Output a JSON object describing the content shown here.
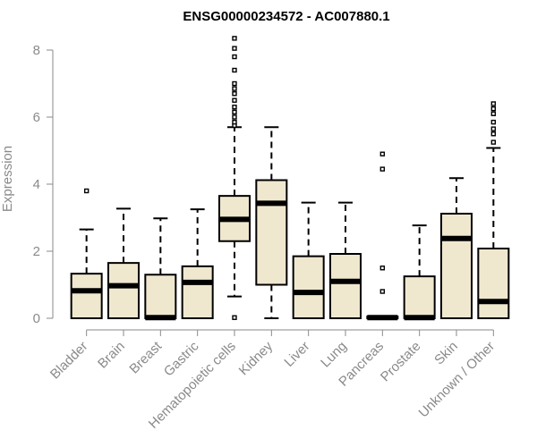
{
  "chart_data": {
    "type": "box",
    "title": "ENSG00000234572 - AC007880.1",
    "xlabel": "",
    "ylabel": "Expression",
    "ylim": [
      0,
      8
    ],
    "yticks": [
      0,
      2,
      4,
      6,
      8
    ],
    "categories": [
      "Bladder",
      "Brain",
      "Breast",
      "Gastric",
      "Hematopoietic cells",
      "Kidney",
      "Liver",
      "Lung",
      "Pancreas",
      "Prostate",
      "Skin",
      "Unknown / Other"
    ],
    "boxes": [
      {
        "category": "Bladder",
        "whisker_low": 0.0,
        "q1": 0.0,
        "median": 0.82,
        "q3": 1.33,
        "whisker_high": 2.65,
        "outliers": [
          3.8
        ]
      },
      {
        "category": "Brain",
        "whisker_low": 0.0,
        "q1": 0.0,
        "median": 0.97,
        "q3": 1.65,
        "whisker_high": 3.27,
        "outliers": []
      },
      {
        "category": "Breast",
        "whisker_low": 0.0,
        "q1": 0.0,
        "median": 0.02,
        "q3": 1.3,
        "whisker_high": 2.98,
        "outliers": []
      },
      {
        "category": "Gastric",
        "whisker_low": 0.0,
        "q1": 0.0,
        "median": 1.07,
        "q3": 1.55,
        "whisker_high": 3.25,
        "outliers": []
      },
      {
        "category": "Hematopoietic cells",
        "whisker_low": 0.65,
        "q1": 2.3,
        "median": 2.95,
        "q3": 3.65,
        "whisker_high": 5.7,
        "outliers": [
          0.02,
          5.75,
          5.85,
          6.0,
          6.15,
          6.3,
          6.5,
          6.7,
          6.85,
          7.0,
          7.4,
          7.8,
          8.05,
          8.35
        ]
      },
      {
        "category": "Kidney",
        "whisker_low": 0.0,
        "q1": 1.0,
        "median": 3.43,
        "q3": 4.12,
        "whisker_high": 5.7,
        "outliers": []
      },
      {
        "category": "Liver",
        "whisker_low": 0.0,
        "q1": 0.0,
        "median": 0.77,
        "q3": 1.85,
        "whisker_high": 3.45,
        "outliers": []
      },
      {
        "category": "Lung",
        "whisker_low": 0.0,
        "q1": 0.0,
        "median": 1.1,
        "q3": 1.92,
        "whisker_high": 3.45,
        "outliers": []
      },
      {
        "category": "Pancreas",
        "whisker_low": 0.0,
        "q1": 0.0,
        "median": 0.02,
        "q3": 0.05,
        "whisker_high": 0.05,
        "outliers": [
          0.8,
          1.5,
          4.45,
          4.9
        ]
      },
      {
        "category": "Prostate",
        "whisker_low": 0.0,
        "q1": 0.0,
        "median": 0.02,
        "q3": 1.25,
        "whisker_high": 2.77,
        "outliers": []
      },
      {
        "category": "Skin",
        "whisker_low": 0.0,
        "q1": 0.0,
        "median": 2.38,
        "q3": 3.12,
        "whisker_high": 4.18,
        "outliers": []
      },
      {
        "category": "Unknown / Other",
        "whisker_low": 0.0,
        "q1": 0.0,
        "median": 0.5,
        "q3": 2.08,
        "whisker_high": 5.08,
        "outliers": [
          5.25,
          5.5,
          5.65,
          5.85,
          6.1,
          6.25,
          6.4
        ]
      }
    ],
    "box_fill": "#efe8cf",
    "box_stroke": "#000000",
    "axis_color": "#8a8a8a",
    "grid": false,
    "legend": "none"
  }
}
